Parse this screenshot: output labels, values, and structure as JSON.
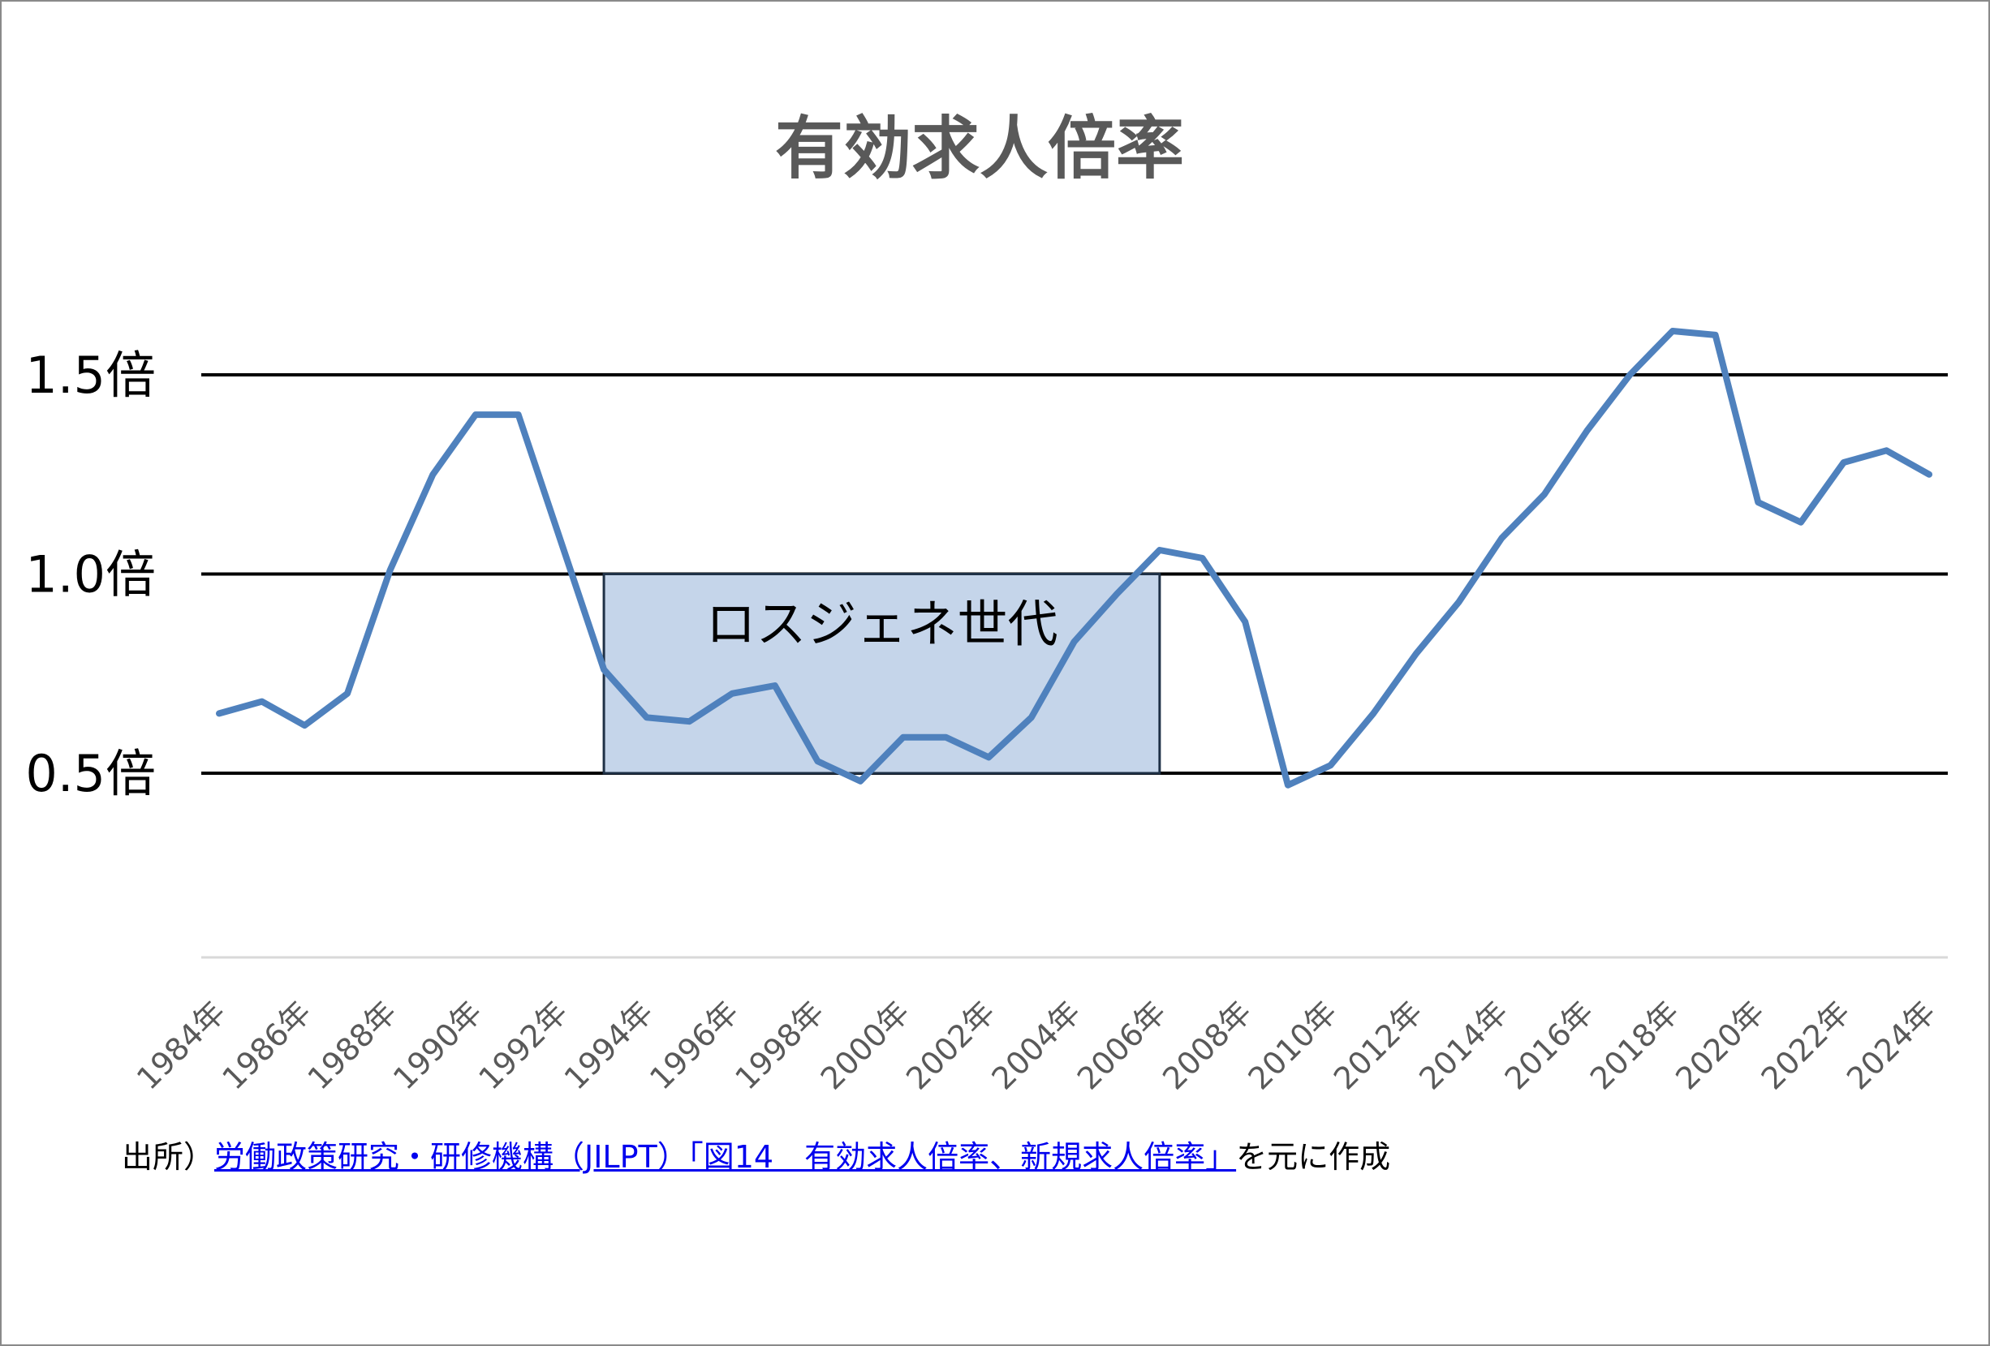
{
  "chart_data": {
    "type": "line",
    "title": "有効求人倍率",
    "y_unit": "倍",
    "ylim": [
      0.0,
      1.55
    ],
    "yticks": [
      {
        "value": 0.5,
        "label": "0.5倍"
      },
      {
        "value": 1.0,
        "label": "1.0倍"
      },
      {
        "value": 1.5,
        "label": "1.5倍"
      }
    ],
    "x_tick_labels": [
      "1984年",
      "1986年",
      "1988年",
      "1990年",
      "1992年",
      "1994年",
      "1996年",
      "1998年",
      "2000年",
      "2002年",
      "2004年",
      "2006年",
      "2008年",
      "2010年",
      "2012年",
      "2014年",
      "2016年",
      "2018年",
      "2020年",
      "2022年",
      "2024年"
    ],
    "x": [
      1984,
      1985,
      1986,
      1987,
      1988,
      1989,
      1990,
      1991,
      1992,
      1993,
      1994,
      1995,
      1996,
      1997,
      1998,
      1999,
      2000,
      2001,
      2002,
      2003,
      2004,
      2005,
      2006,
      2007,
      2008,
      2009,
      2010,
      2011,
      2012,
      2013,
      2014,
      2015,
      2016,
      2017,
      2018,
      2019,
      2020,
      2021,
      2022,
      2023,
      2024
    ],
    "series": [
      {
        "color": "#4f81bd",
        "values": [
          0.65,
          0.68,
          0.62,
          0.7,
          1.01,
          1.25,
          1.4,
          1.4,
          1.08,
          0.76,
          0.64,
          0.63,
          0.7,
          0.72,
          0.53,
          0.48,
          0.59,
          0.59,
          0.54,
          0.64,
          0.83,
          0.95,
          1.06,
          1.04,
          0.88,
          0.47,
          0.52,
          0.65,
          0.8,
          0.93,
          1.09,
          1.2,
          1.36,
          1.5,
          1.61,
          1.6,
          1.18,
          1.13,
          1.28,
          1.31,
          1.25
        ]
      }
    ],
    "shaded_region": {
      "label": "ロスジェネ世代",
      "x_start": 1993,
      "x_end": 2006,
      "y_start": 0.5,
      "y_end": 1.0,
      "fill": "#c5d5ea",
      "stroke": "#1f3146"
    },
    "gridlines": "major lines at 0.5, 1.0, 1.5",
    "legend": "none"
  },
  "source": {
    "prefix": "出所）",
    "link_text": "労働政策研究・研修機構（JILPT）「図14　有効求人倍率、新規求人倍率」",
    "suffix": "を元に作成"
  }
}
